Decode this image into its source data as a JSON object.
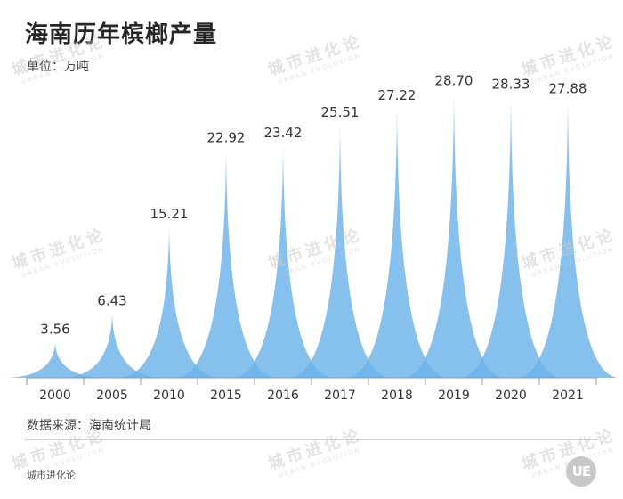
{
  "title": "海南历年槟榔产量",
  "unit": "单位：万吨",
  "source": "数据来源：海南统计局",
  "brand": "城市进化论",
  "logo_text": "UE",
  "watermark": {
    "cn": "城市进化论",
    "en": "URBAN EVOLUTION"
  },
  "colors": {
    "fill": "#6bb3ea",
    "axis": "#9a9a9a",
    "label": "#333333"
  },
  "chart_data": {
    "type": "area",
    "title": "海南历年槟榔产量",
    "ylabel": "单位：万吨",
    "categories": [
      "2000",
      "2005",
      "2010",
      "2015",
      "2016",
      "2017",
      "2018",
      "2019",
      "2020",
      "2021"
    ],
    "values": [
      3.56,
      6.43,
      15.21,
      22.92,
      23.42,
      25.51,
      27.22,
      28.7,
      28.33,
      27.88
    ],
    "value_labels": [
      "3.56",
      "6.43",
      "15.21",
      "22.92",
      "23.42",
      "25.51",
      "27.22",
      "28.70",
      "28.33",
      "27.88"
    ],
    "ylim": [
      0,
      31
    ],
    "grid": false,
    "legend": "none"
  }
}
